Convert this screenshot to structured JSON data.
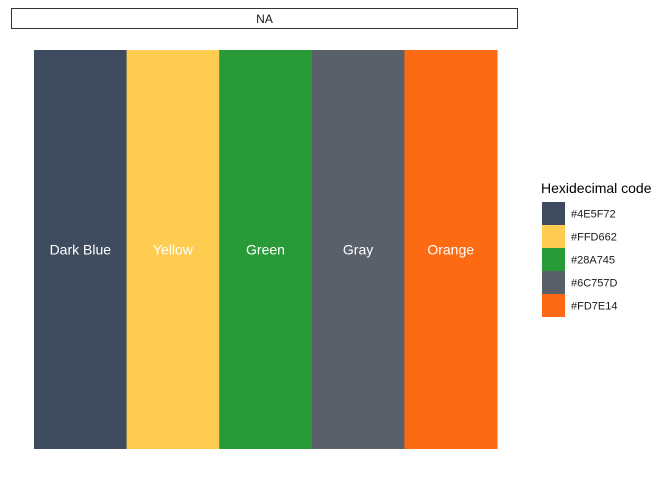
{
  "chart_data": {
    "type": "bar",
    "strip_label": "NA",
    "categories": [
      "Dark Blue",
      "Yellow",
      "Green",
      "Gray",
      "Orange"
    ],
    "values": [
      1,
      1,
      1,
      1,
      1
    ],
    "colors": [
      "#3E4B5F",
      "#FFCC52",
      "#289B38",
      "#5A6069",
      "#FD6A14"
    ],
    "legend": {
      "title": "Hexidecimal code",
      "position": "right",
      "entries": [
        "#4E5F72",
        "#FFD662",
        "#28A745",
        "#6C757D",
        "#FD7E14"
      ]
    },
    "grid": false,
    "xlabel": "",
    "ylabel": ""
  }
}
